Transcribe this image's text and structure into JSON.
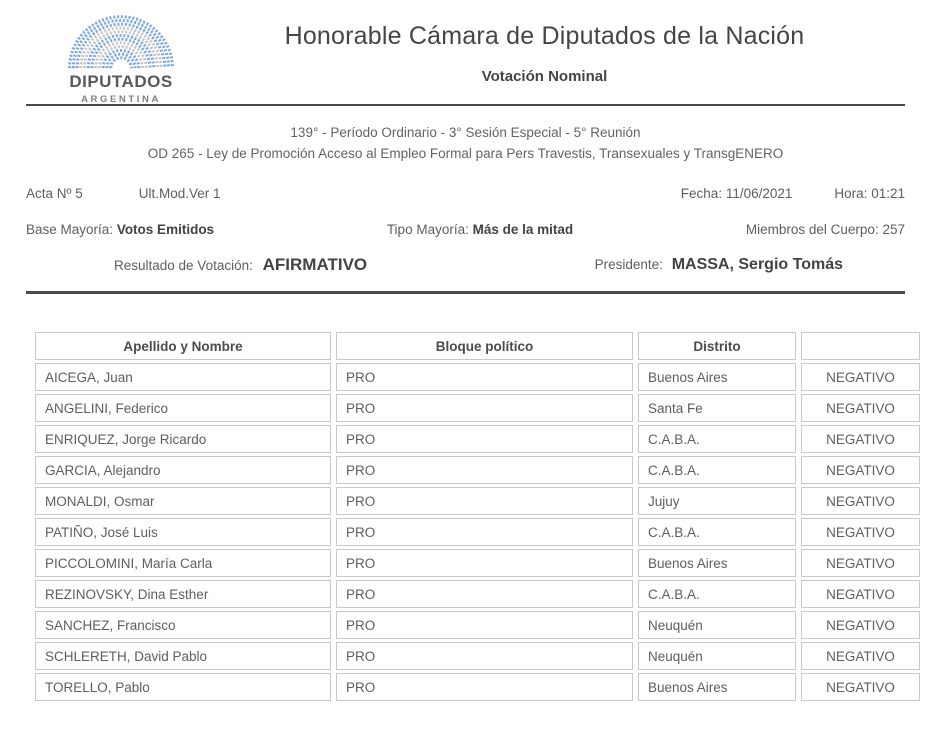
{
  "header": {
    "logo_line1": "DIPUTADOS",
    "logo_line2": "ARGENTINA",
    "title": "Honorable Cámara de Diputados de la Nación",
    "subtitle": "Votación Nominal"
  },
  "session": {
    "line1": "139° - Período Ordinario - 3° Sesión Especial - 5° Reunión",
    "line2": "OD 265 - Ley de Promoción Acceso al Empleo Formal para Pers Travestis, Transexuales y TransgENERO"
  },
  "meta": {
    "acta": "Acta Nº 5",
    "ult_mod": "Ult.Mod.Ver  1",
    "fecha_label": "Fecha:",
    "fecha_value": "11/06/2021",
    "hora_label": "Hora:",
    "hora_value": "01:21",
    "base_mayoria_label": "Base Mayoría:",
    "base_mayoria_value": "Votos Emitidos",
    "tipo_mayoria_label": "Tipo Mayoría:",
    "tipo_mayoria_value": "Más de la mitad",
    "miembros_label": "Miembros del Cuerpo:",
    "miembros_value": "257",
    "resultado_label": "Resultado de Votación:",
    "resultado_value": "AFIRMATIVO",
    "presidente_label": "Presidente:",
    "presidente_value": "MASSA, Sergio Tomás"
  },
  "table": {
    "headers": [
      "Apellido y Nombre",
      "Bloque político",
      "Distrito",
      ""
    ],
    "rows": [
      [
        "AICEGA, Juan",
        "PRO",
        "Buenos Aires",
        "NEGATIVO"
      ],
      [
        "ANGELINI, Federico",
        "PRO",
        "Santa Fe",
        "NEGATIVO"
      ],
      [
        "ENRIQUEZ, Jorge Ricardo",
        "PRO",
        "C.A.B.A.",
        "NEGATIVO"
      ],
      [
        "GARCIA, Alejandro",
        "PRO",
        "C.A.B.A.",
        "NEGATIVO"
      ],
      [
        "MONALDI, Osmar",
        "PRO",
        "Jujuy",
        "NEGATIVO"
      ],
      [
        "PATIÑO, José Luis",
        "PRO",
        "C.A.B.A.",
        "NEGATIVO"
      ],
      [
        "PICCOLOMINI, María Carla",
        "PRO",
        "Buenos Aires",
        "NEGATIVO"
      ],
      [
        "REZINOVSKY, Dina Esther",
        "PRO",
        "C.A.B.A.",
        "NEGATIVO"
      ],
      [
        "SANCHEZ, Francisco",
        "PRO",
        "Neuquén",
        "NEGATIVO"
      ],
      [
        "SCHLERETH, David Pablo",
        "PRO",
        "Neuquén",
        "NEGATIVO"
      ],
      [
        "TORELLO, Pablo",
        "PRO",
        "Buenos Aires",
        "NEGATIVO"
      ]
    ]
  },
  "colors": {
    "logo_blue": "#7fa8d9",
    "logo_gray": "#c6c6c6",
    "rule_dark": "#4a4a4c",
    "table_border": "#c9c9c9",
    "text": "#58585a"
  }
}
